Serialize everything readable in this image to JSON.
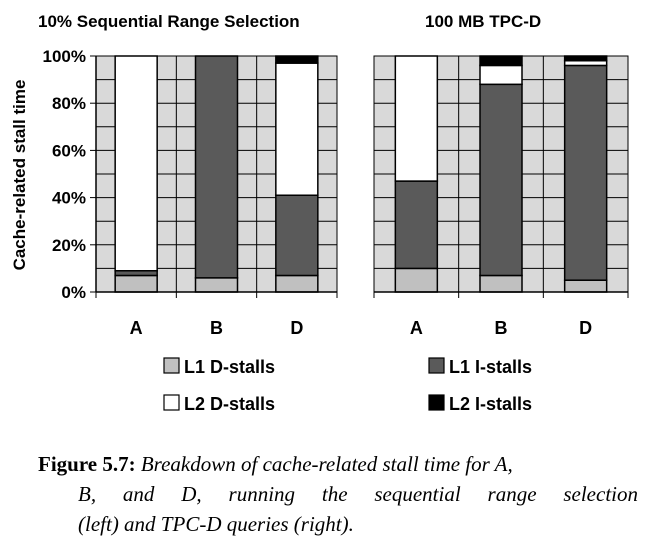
{
  "chart_data": [
    {
      "type": "bar",
      "stacked": true,
      "title": "10% Sequential Range Selection",
      "ylabel": "Cache-related stall time",
      "ylim": [
        0,
        100
      ],
      "yticks": [
        "0%",
        "20%",
        "40%",
        "60%",
        "80%",
        "100%"
      ],
      "grid": true,
      "categories": [
        "A",
        "B",
        "D"
      ],
      "series": [
        {
          "name": "L1 D-stalls",
          "values": [
            7,
            6,
            7
          ],
          "color": "#c0c0c0"
        },
        {
          "name": "L1 I-stalls",
          "values": [
            2,
            94,
            34
          ],
          "color": "#5a5a5a"
        },
        {
          "name": "L2 D-stalls",
          "values": [
            91,
            0,
            56
          ],
          "color": "#ffffff"
        },
        {
          "name": "L2 I-stalls",
          "values": [
            0,
            0,
            3
          ],
          "color": "#000000"
        }
      ]
    },
    {
      "type": "bar",
      "stacked": true,
      "title": "100 MB TPC-D",
      "ylim": [
        0,
        100
      ],
      "grid": true,
      "categories": [
        "A",
        "B",
        "D"
      ],
      "series": [
        {
          "name": "L1 D-stalls",
          "values": [
            10,
            7,
            5
          ],
          "color": "#c0c0c0"
        },
        {
          "name": "L1 I-stalls",
          "values": [
            37,
            81,
            91
          ],
          "color": "#5a5a5a"
        },
        {
          "name": "L2 D-stalls",
          "values": [
            53,
            8,
            2
          ],
          "color": "#ffffff"
        },
        {
          "name": "L2 I-stalls",
          "values": [
            0,
            4,
            2
          ],
          "color": "#000000"
        }
      ]
    }
  ],
  "legend": [
    {
      "label": "L1 D-stalls",
      "color": "#c0c0c0"
    },
    {
      "label": "L1 I-stalls",
      "color": "#5a5a5a"
    },
    {
      "label": "L2 D-stalls",
      "color": "#ffffff"
    },
    {
      "label": "L2 I-stalls",
      "color": "#000000"
    }
  ],
  "plot_background": "#d9d9d9",
  "caption": {
    "label": "Figure 5.7:",
    "line1": "Breakdown of cache-related stall time for A,",
    "line2": "B, and D, running the sequential range selection",
    "line3": "(left) and TPC-D queries (right)."
  }
}
